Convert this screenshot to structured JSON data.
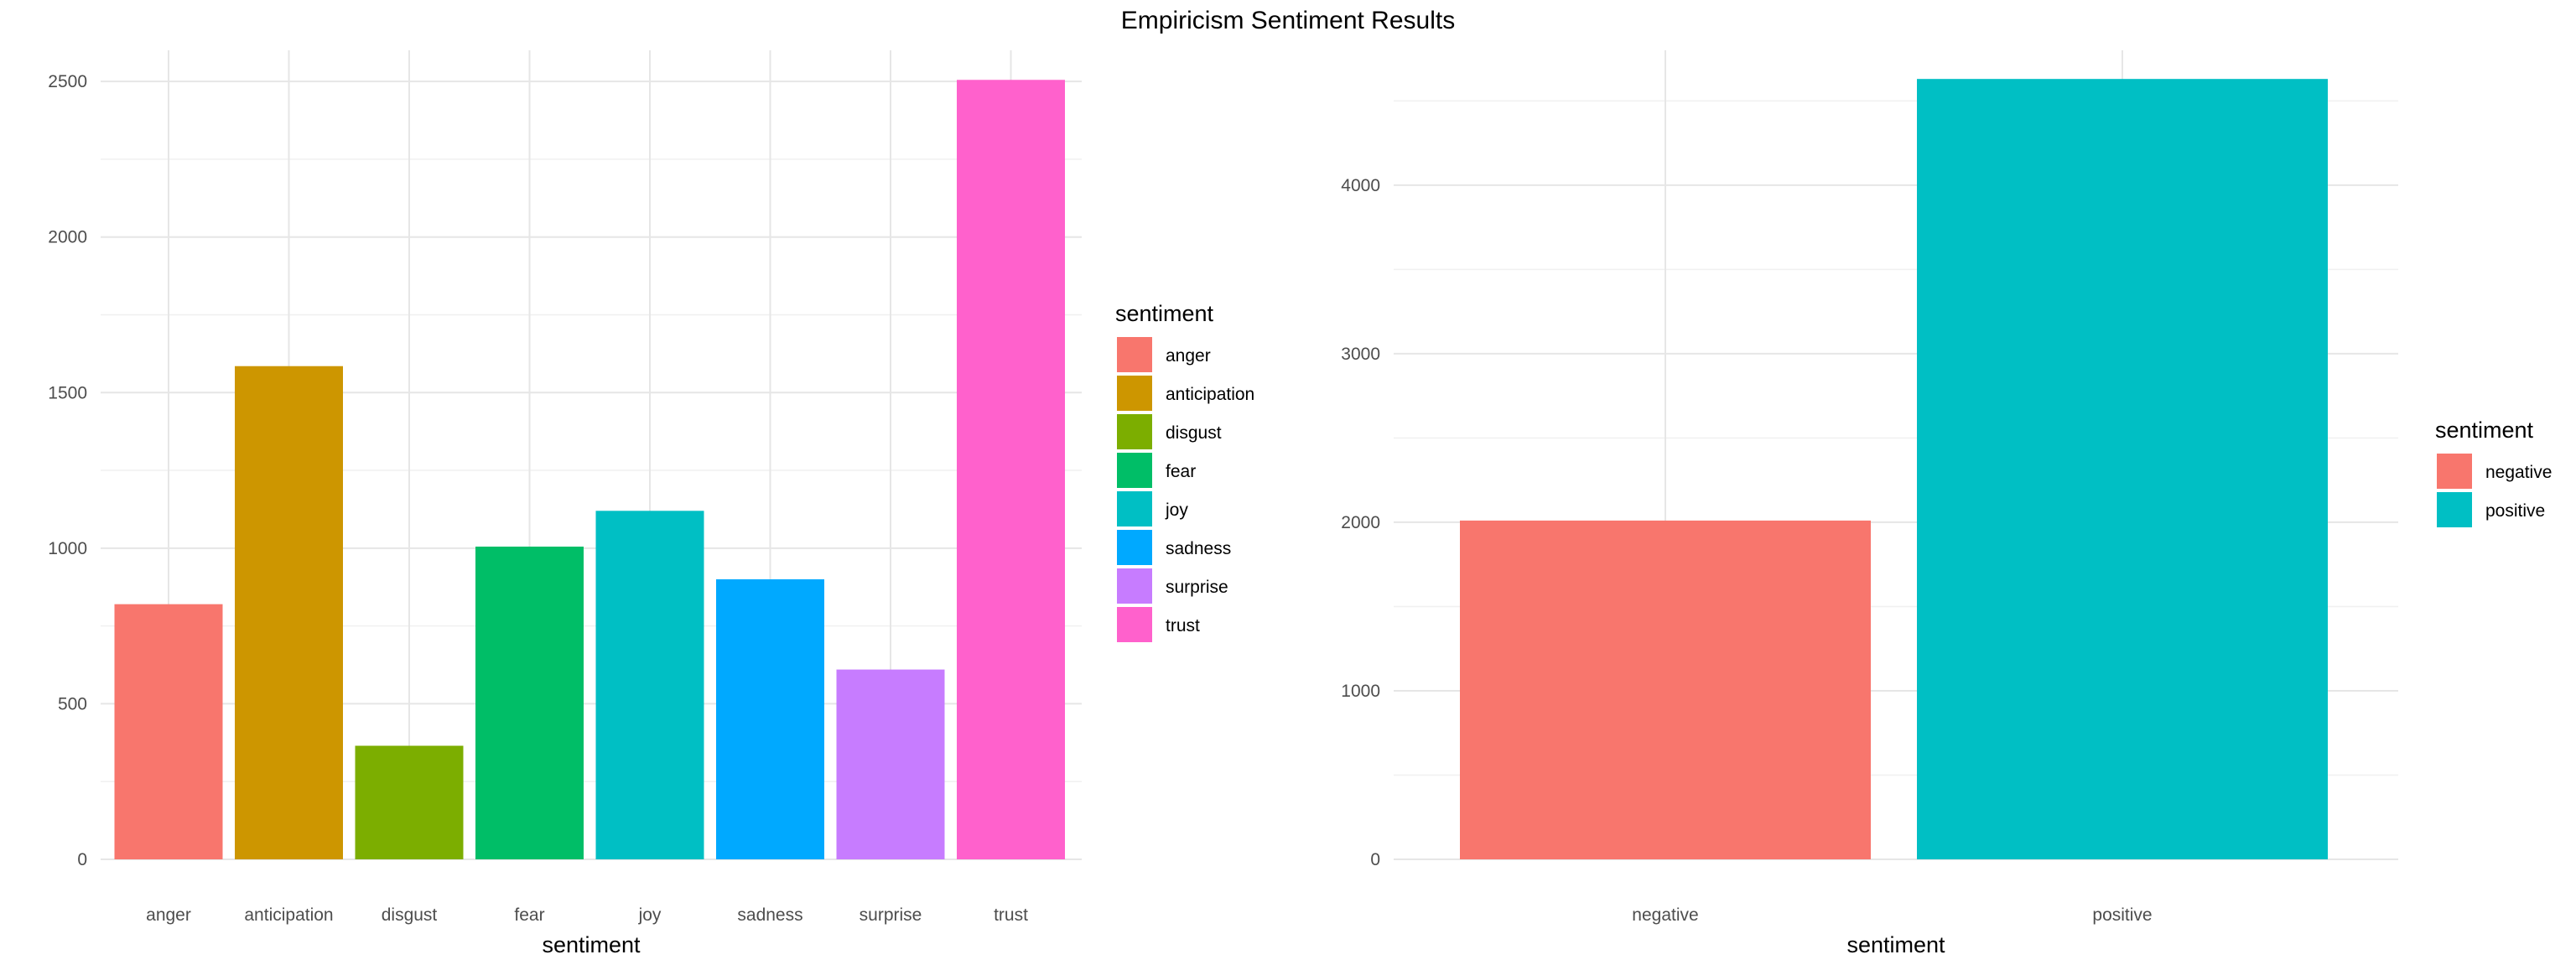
{
  "title": "Empiricism Sentiment Results",
  "chart_data": [
    {
      "type": "bar",
      "categories": [
        "anger",
        "anticipation",
        "disgust",
        "fear",
        "joy",
        "sadness",
        "surprise",
        "trust"
      ],
      "values": [
        820,
        1585,
        365,
        1005,
        1120,
        900,
        610,
        2505
      ],
      "colors": [
        "#F8766D",
        "#CD9600",
        "#7CAE00",
        "#00BE67",
        "#00BFC4",
        "#00A9FF",
        "#C77CFF",
        "#FF61CC"
      ],
      "xlabel": "sentiment",
      "ylabel": "",
      "ylim": [
        0,
        2600
      ],
      "yticks": [
        0,
        500,
        1000,
        1500,
        2000,
        2500
      ],
      "grid": true,
      "legend": {
        "title": "sentiment",
        "placement": "right"
      }
    },
    {
      "type": "bar",
      "categories": [
        "negative",
        "positive"
      ],
      "values": [
        2010,
        4630
      ],
      "colors": [
        "#F8766D",
        "#00BFC4"
      ],
      "xlabel": "sentiment",
      "ylabel": "",
      "ylim": [
        0,
        4800
      ],
      "yticks": [
        0,
        1000,
        2000,
        3000,
        4000
      ],
      "grid": true,
      "legend": {
        "title": "sentiment",
        "placement": "right"
      }
    }
  ]
}
